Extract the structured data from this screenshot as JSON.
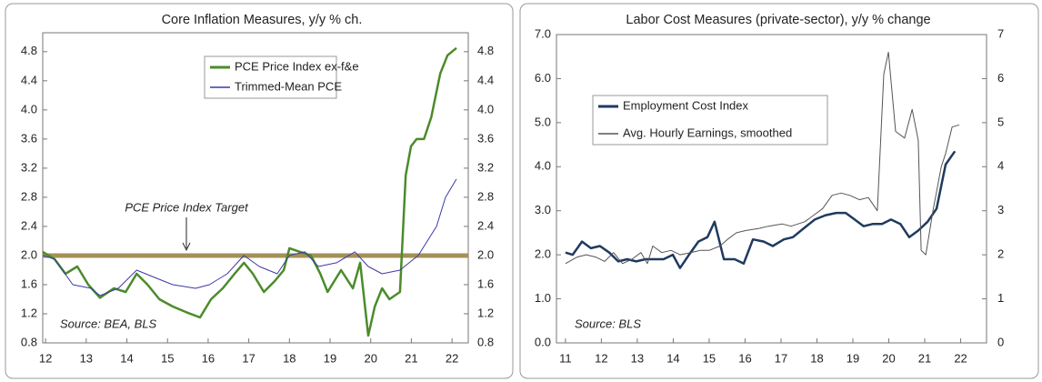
{
  "chart_data": [
    {
      "type": "line",
      "title": "Core Inflation Measures, y/y % ch.",
      "xlim": [
        11.93,
        22.4
      ],
      "xticks": [
        12,
        13,
        14,
        15,
        16,
        17,
        18,
        19,
        20,
        21,
        22
      ],
      "ylim": [
        0.8,
        5.06
      ],
      "yticks": [
        0.8,
        1.2,
        1.6,
        {
          "value": 2,
          "label": "2.0"
        },
        2.4,
        2.8,
        3.2,
        3.6,
        {
          "value": 4,
          "label": "4.0"
        },
        4.4,
        4.8
      ],
      "right_axis_mirror": true,
      "legend": "upper center",
      "source": "Source: BEA, BLS",
      "target_line": {
        "value": 2,
        "label": "PCE Price Index Target",
        "color": "#a39257"
      },
      "series": [
        {
          "name": "PCE Price Index ex-f&e",
          "color": "#4b8b2b",
          "width": 2.5,
          "x": [
            11.93,
            12.22,
            12.49,
            12.78,
            13.05,
            13.34,
            13.68,
            13.97,
            14.24,
            14.51,
            14.8,
            15.13,
            15.47,
            15.8,
            16.07,
            16.36,
            16.65,
            16.88,
            17.1,
            17.37,
            17.64,
            17.86,
            18.0,
            18.26,
            18.53,
            18.76,
            18.94,
            19.27,
            19.56,
            19.74,
            19.94,
            20.1,
            20.28,
            20.46,
            20.72,
            20.86,
            20.99,
            21.13,
            21.31,
            21.49,
            21.71,
            21.89,
            22.11
          ],
          "values": [
            2.05,
            1.95,
            1.75,
            1.85,
            1.6,
            1.42,
            1.55,
            1.5,
            1.75,
            1.6,
            1.4,
            1.3,
            1.22,
            1.15,
            1.4,
            1.55,
            1.75,
            1.9,
            1.75,
            1.5,
            1.65,
            1.8,
            2.1,
            2.05,
            2.0,
            1.75,
            1.5,
            1.8,
            1.55,
            1.9,
            0.9,
            1.3,
            1.55,
            1.4,
            1.5,
            3.1,
            3.5,
            3.6,
            3.6,
            3.9,
            4.5,
            4.75,
            4.85
          ]
        },
        {
          "name": "Trimmed-Mean PCE",
          "color": "#3a3aa8",
          "width": 1,
          "x": [
            11.93,
            12.22,
            12.67,
            13.12,
            13.34,
            13.79,
            14.24,
            14.68,
            15.13,
            15.69,
            16.03,
            16.47,
            16.88,
            17.26,
            17.7,
            18.0,
            18.38,
            18.71,
            19.16,
            19.61,
            19.94,
            20.28,
            20.72,
            21.17,
            21.62,
            21.84,
            22.11
          ],
          "values": [
            2.0,
            1.95,
            1.6,
            1.55,
            1.45,
            1.55,
            1.8,
            1.7,
            1.6,
            1.55,
            1.6,
            1.75,
            2.0,
            1.85,
            1.75,
            2.0,
            2.05,
            1.85,
            1.9,
            2.05,
            1.85,
            1.75,
            1.8,
            2.0,
            2.4,
            2.8,
            3.05
          ]
        }
      ]
    },
    {
      "type": "line",
      "title": "Labor Cost Measures (private-sector), y/y % change",
      "xlim": [
        10.75,
        22.72
      ],
      "xticks": [
        11,
        12,
        13,
        14,
        15,
        16,
        17,
        18,
        19,
        20,
        21,
        22
      ],
      "ylim": [
        0,
        7
      ],
      "yticks": [
        {
          "value": 0,
          "label": "0.0"
        },
        {
          "value": 1,
          "label": "1.0"
        },
        {
          "value": 2,
          "label": "2.0"
        },
        {
          "value": 3,
          "label": "3.0"
        },
        {
          "value": 4,
          "label": "4.0"
        },
        {
          "value": 5,
          "label": "5.0"
        },
        {
          "value": 6,
          "label": "6.0"
        },
        {
          "value": 7,
          "label": "7.0"
        }
      ],
      "y2lim": [
        0,
        7
      ],
      "y2ticks": [
        0,
        1,
        2,
        3,
        4,
        5,
        6,
        7
      ],
      "legend": "upper left",
      "source": "Source: BLS",
      "series": [
        {
          "name": "Employment Cost Index",
          "color": "#1f3a5f",
          "width": 2.5,
          "x": [
            11.0,
            11.2,
            11.46,
            11.71,
            11.96,
            12.22,
            12.47,
            12.72,
            12.97,
            13.23,
            13.48,
            13.73,
            13.99,
            14.19,
            14.44,
            14.7,
            14.95,
            15.15,
            15.41,
            15.71,
            15.96,
            16.22,
            16.52,
            16.77,
            17.08,
            17.33,
            17.63,
            17.94,
            18.24,
            18.54,
            18.8,
            19.05,
            19.3,
            19.56,
            19.81,
            20.06,
            20.32,
            20.57,
            20.82,
            21.08,
            21.33,
            21.58,
            21.84
          ],
          "values": [
            2.05,
            2.0,
            2.3,
            2.15,
            2.2,
            2.05,
            1.85,
            1.9,
            1.85,
            1.9,
            1.9,
            1.9,
            2.0,
            1.7,
            2.0,
            2.3,
            2.4,
            2.75,
            1.9,
            1.9,
            1.8,
            2.35,
            2.3,
            2.2,
            2.35,
            2.4,
            2.6,
            2.8,
            2.9,
            2.95,
            2.95,
            2.8,
            2.65,
            2.7,
            2.7,
            2.8,
            2.7,
            2.4,
            2.55,
            2.75,
            3.05,
            4.05,
            4.35
          ]
        },
        {
          "name": "Avg. Hourly Earnings, smoothed",
          "color": "#555555",
          "width": 1,
          "axis": "y2",
          "x": [
            11.0,
            11.33,
            11.58,
            11.84,
            12.09,
            12.34,
            12.59,
            12.85,
            13.1,
            13.28,
            13.43,
            13.68,
            13.94,
            14.19,
            14.49,
            14.75,
            15.0,
            15.3,
            15.51,
            15.76,
            16.01,
            16.39,
            16.65,
            17.03,
            17.28,
            17.66,
            17.91,
            18.16,
            18.42,
            18.67,
            18.92,
            19.18,
            19.43,
            19.68,
            19.86,
            19.99,
            20.19,
            20.44,
            20.65,
            20.82,
            20.9,
            21.03,
            21.23,
            21.46,
            21.58,
            21.76,
            21.96
          ],
          "values": [
            1.8,
            1.95,
            2.0,
            1.95,
            1.85,
            2.05,
            1.8,
            1.9,
            2.05,
            1.8,
            2.2,
            2.05,
            2.1,
            2.0,
            2.05,
            2.1,
            2.1,
            2.2,
            2.35,
            2.5,
            2.55,
            2.6,
            2.65,
            2.7,
            2.65,
            2.75,
            2.9,
            3.05,
            3.35,
            3.4,
            3.35,
            3.25,
            3.3,
            3.0,
            6.1,
            6.6,
            4.8,
            4.65,
            5.3,
            4.6,
            2.1,
            2.0,
            3.0,
            4.0,
            4.3,
            4.9,
            4.95
          ]
        }
      ]
    }
  ]
}
